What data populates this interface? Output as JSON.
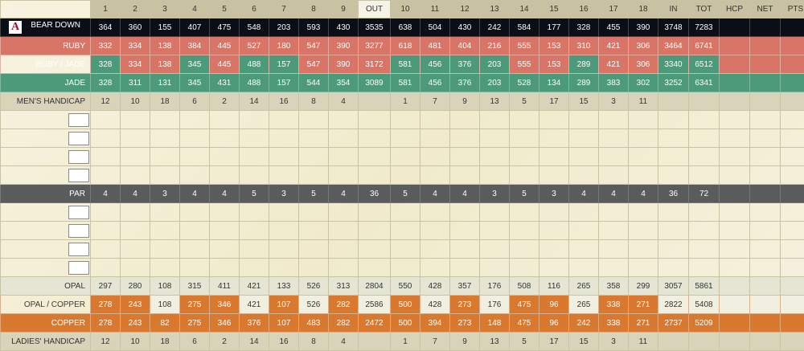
{
  "header": {
    "holes": [
      "1",
      "2",
      "3",
      "4",
      "5",
      "6",
      "7",
      "8",
      "9",
      "OUT",
      "10",
      "11",
      "12",
      "13",
      "14",
      "15",
      "16",
      "17",
      "18",
      "IN",
      "TOT",
      "HCP",
      "NET",
      "PTS"
    ]
  },
  "rows": {
    "bear_down": {
      "label": "BEAR DOWN",
      "values": [
        "364",
        "360",
        "155",
        "407",
        "475",
        "548",
        "203",
        "593",
        "430",
        "3535",
        "638",
        "504",
        "430",
        "242",
        "584",
        "177",
        "328",
        "455",
        "390",
        "3748",
        "7283",
        "",
        "",
        ""
      ]
    },
    "ruby": {
      "label": "RUBY",
      "values": [
        "332",
        "334",
        "138",
        "384",
        "445",
        "527",
        "180",
        "547",
        "390",
        "3277",
        "618",
        "481",
        "404",
        "216",
        "555",
        "153",
        "310",
        "421",
        "306",
        "3464",
        "6741",
        "",
        "",
        ""
      ]
    },
    "ruby_jade": {
      "label": "RUBY / JADE",
      "values": [
        "328",
        "334",
        "138",
        "345",
        "445",
        "488",
        "157",
        "547",
        "390",
        "3172",
        "581",
        "456",
        "376",
        "203",
        "555",
        "153",
        "289",
        "421",
        "306",
        "3340",
        "6512",
        "",
        "",
        ""
      ],
      "colors": [
        "j",
        "r",
        "r",
        "j",
        "r",
        "j",
        "j",
        "r",
        "r",
        "r",
        "j",
        "j",
        "j",
        "j",
        "r",
        "r",
        "j",
        "r",
        "r",
        "j",
        "j",
        "r",
        "r",
        "r"
      ]
    },
    "jade": {
      "label": "JADE",
      "values": [
        "328",
        "311",
        "131",
        "345",
        "431",
        "488",
        "157",
        "544",
        "354",
        "3089",
        "581",
        "456",
        "376",
        "203",
        "528",
        "134",
        "289",
        "383",
        "302",
        "3252",
        "6341",
        "",
        "",
        ""
      ]
    },
    "mens_hcp": {
      "label": "MEN'S HANDICAP",
      "values": [
        "12",
        "10",
        "18",
        "6",
        "2",
        "14",
        "16",
        "8",
        "4",
        "",
        "1",
        "7",
        "9",
        "13",
        "5",
        "17",
        "15",
        "3",
        "11",
        "",
        "",
        "",
        "",
        ""
      ]
    },
    "par": {
      "label": "PAR",
      "values": [
        "4",
        "4",
        "3",
        "4",
        "4",
        "5",
        "3",
        "5",
        "4",
        "36",
        "5",
        "4",
        "4",
        "3",
        "5",
        "3",
        "4",
        "4",
        "4",
        "36",
        "72",
        "",
        "",
        ""
      ]
    },
    "opal": {
      "label": "OPAL",
      "values": [
        "297",
        "280",
        "108",
        "315",
        "411",
        "421",
        "133",
        "526",
        "313",
        "2804",
        "550",
        "428",
        "357",
        "176",
        "508",
        "116",
        "265",
        "358",
        "299",
        "3057",
        "5861",
        "",
        "",
        ""
      ]
    },
    "opal_copper": {
      "label": "OPAL / COPPER",
      "values": [
        "278",
        "243",
        "108",
        "275",
        "346",
        "421",
        "107",
        "526",
        "282",
        "2586",
        "500",
        "428",
        "273",
        "176",
        "475",
        "96",
        "265",
        "338",
        "271",
        "2822",
        "5408",
        "",
        "",
        ""
      ],
      "colors": [
        "c",
        "c",
        "o",
        "c",
        "c",
        "o",
        "c",
        "o",
        "c",
        "o",
        "c",
        "o",
        "c",
        "o",
        "c",
        "c",
        "o",
        "c",
        "c",
        "o",
        "o",
        "o",
        "o",
        "o"
      ]
    },
    "copper": {
      "label": "COPPER",
      "values": [
        "278",
        "243",
        "82",
        "275",
        "346",
        "376",
        "107",
        "483",
        "282",
        "2472",
        "500",
        "394",
        "273",
        "148",
        "475",
        "96",
        "242",
        "338",
        "271",
        "2737",
        "5209",
        "",
        "",
        ""
      ]
    },
    "ladies_hcp": {
      "label": "LADIES' HANDICAP",
      "values": [
        "12",
        "10",
        "18",
        "6",
        "2",
        "14",
        "16",
        "8",
        "4",
        "",
        "1",
        "7",
        "9",
        "13",
        "5",
        "17",
        "15",
        "3",
        "11",
        "",
        "",
        "",
        "",
        ""
      ]
    }
  },
  "colors": {
    "bear_down": "#0a0e17",
    "ruby": "#d97566",
    "jade": "#4c9a7a",
    "par": "#5a5b5d",
    "copper": "#d9792f",
    "opal": "#e4e6d3",
    "handicap": "#d8d3b9"
  },
  "logo": {
    "icon": "arizona-a-logo"
  }
}
